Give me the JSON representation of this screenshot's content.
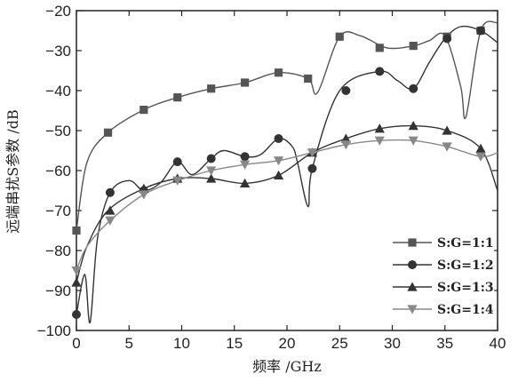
{
  "chart_data": {
    "type": "line",
    "xlabel": "频率 /GHz",
    "ylabel": "远端串扰S参数 /dB",
    "xlim": [
      0,
      40
    ],
    "ylim": [
      -100,
      -20
    ],
    "xticks": [
      0,
      5,
      10,
      15,
      20,
      25,
      30,
      35,
      40
    ],
    "yticks": [
      -100,
      -90,
      -80,
      -70,
      -60,
      -50,
      -40,
      -30,
      -20
    ],
    "grid": false,
    "legend_position": "bottom-right",
    "series": [
      {
        "name": "S:G=1:1",
        "marker": "square",
        "color": "#555555",
        "x": [
          0,
          1,
          3,
          6.4,
          9.6,
          12.8,
          16,
          19.2,
          22,
          22.9,
          25,
          27,
          29.5,
          32,
          33.5,
          35,
          36.5,
          37,
          38.4,
          40
        ],
        "y": [
          -75,
          -58,
          -50.5,
          -44.8,
          -41.7,
          -39.5,
          -38,
          -35.5,
          -37,
          -40.5,
          -26.5,
          -26.3,
          -29.3,
          -28.8,
          -27.5,
          -26.3,
          -39,
          -46.5,
          -25,
          -23
        ],
        "marker_x": [
          0,
          3,
          6.4,
          9.6,
          12.8,
          16,
          19.2,
          22,
          25,
          28.8,
          32,
          35.2,
          38.4
        ],
        "marker_y": [
          -75,
          -50.5,
          -44.8,
          -41.7,
          -39.5,
          -38,
          -35.5,
          -37,
          -26.5,
          -29.3,
          -28.8,
          -26.5,
          -25
        ]
      },
      {
        "name": "S:G=1:2",
        "marker": "circle",
        "color": "#333333",
        "x": [
          0,
          0.8,
          1.3,
          2,
          3.2,
          5,
          6.4,
          8,
          9.6,
          11,
          12.8,
          14,
          16,
          17.5,
          19.2,
          20.5,
          21,
          22,
          22.4,
          25,
          28.8,
          30.5,
          32,
          33.5,
          35,
          36.5,
          38.4,
          40
        ],
        "y": [
          -96,
          -86,
          -98,
          -77,
          -65.5,
          -62.5,
          -65,
          -63,
          -57.8,
          -61,
          -57,
          -55,
          -56.5,
          -56,
          -52,
          -54,
          -58,
          -69,
          -59.5,
          -40,
          -35.2,
          -37.5,
          -39.5,
          -33,
          -27,
          -24,
          -25,
          -28
        ],
        "marker_x": [
          0,
          3.2,
          6.4,
          9.6,
          12.8,
          16,
          19.2,
          22.4,
          25.6,
          28.8,
          32,
          35.2,
          38.4
        ],
        "marker_y": [
          -96,
          -65.5,
          -65,
          -57.8,
          -57,
          -56.5,
          -52,
          -59.5,
          -40,
          -35.2,
          -39.5,
          -27,
          -25
        ]
      },
      {
        "name": "S:G=1:3",
        "marker": "triangle-up",
        "color": "#333333",
        "x": [
          0,
          1,
          3,
          6.4,
          9.6,
          12.8,
          16,
          19.2,
          22.4,
          25.6,
          28.8,
          32,
          35.2,
          38.4,
          40
        ],
        "y": [
          -88,
          -79,
          -70,
          -64.5,
          -62,
          -62,
          -63.2,
          -61.2,
          -55.5,
          -52,
          -49.5,
          -48.8,
          -50,
          -54.5,
          -65
        ],
        "marker_x": [
          0,
          3.2,
          6.4,
          9.6,
          12.8,
          16,
          19.2,
          22.4,
          25.6,
          28.8,
          32,
          35.2,
          38.4
        ],
        "marker_y": [
          -88,
          -70,
          -64.5,
          -62,
          -62,
          -63.2,
          -61.2,
          -55.5,
          -52,
          -49.5,
          -48.8,
          -50,
          -54.5
        ]
      },
      {
        "name": "S:G=1:4",
        "marker": "triangle-down",
        "color": "#888888",
        "x": [
          0,
          1,
          3.2,
          6.4,
          9.6,
          12.8,
          16,
          19.2,
          22.4,
          25.6,
          28.8,
          32,
          35.2,
          38.4,
          40
        ],
        "y": [
          -85,
          -79,
          -72.5,
          -66,
          -62.5,
          -60,
          -58.5,
          -57.5,
          -55.5,
          -53.5,
          -52.5,
          -52.5,
          -54,
          -56.5,
          -55.5
        ],
        "marker_x": [
          0,
          3.2,
          6.4,
          9.6,
          12.8,
          16,
          19.2,
          22.4,
          25.6,
          28.8,
          32,
          35.2,
          38.4
        ],
        "marker_y": [
          -85,
          -72.5,
          -66,
          -62.5,
          -60,
          -58.5,
          -57.5,
          -55.5,
          -53.5,
          -52.5,
          -52.5,
          -54,
          -56.5
        ]
      }
    ]
  }
}
